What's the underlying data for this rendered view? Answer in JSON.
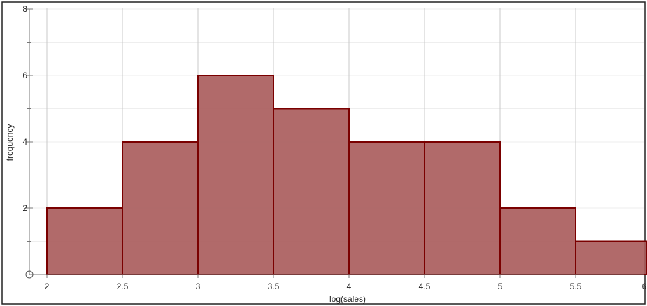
{
  "chart_data": {
    "type": "bar",
    "xlabel": "log(sales)",
    "ylabel": "frequency",
    "bins": [
      {
        "x0": 2.0,
        "x1": 2.5,
        "count": 2
      },
      {
        "x0": 2.5,
        "x1": 3.0,
        "count": 4
      },
      {
        "x0": 3.0,
        "x1": 3.5,
        "count": 6
      },
      {
        "x0": 3.5,
        "x1": 4.0,
        "count": 5
      },
      {
        "x0": 4.0,
        "x1": 4.5,
        "count": 4
      },
      {
        "x0": 4.5,
        "x1": 5.0,
        "count": 4
      },
      {
        "x0": 5.0,
        "x1": 5.5,
        "count": 2
      },
      {
        "x0": 5.5,
        "x1": 6.0,
        "count": 1
      }
    ],
    "x_ticks": [
      "2",
      "2.5",
      "3",
      "3.5",
      "4",
      "4.5",
      "5",
      "5.5",
      "6"
    ],
    "y_ticks": [
      "2",
      "4",
      "6",
      "8"
    ],
    "xlim": [
      2,
      6
    ],
    "ylim": [
      0,
      8
    ],
    "grid": "vertical",
    "bar_color": "#a85a5a",
    "bar_edge_color": "#7a0000"
  }
}
